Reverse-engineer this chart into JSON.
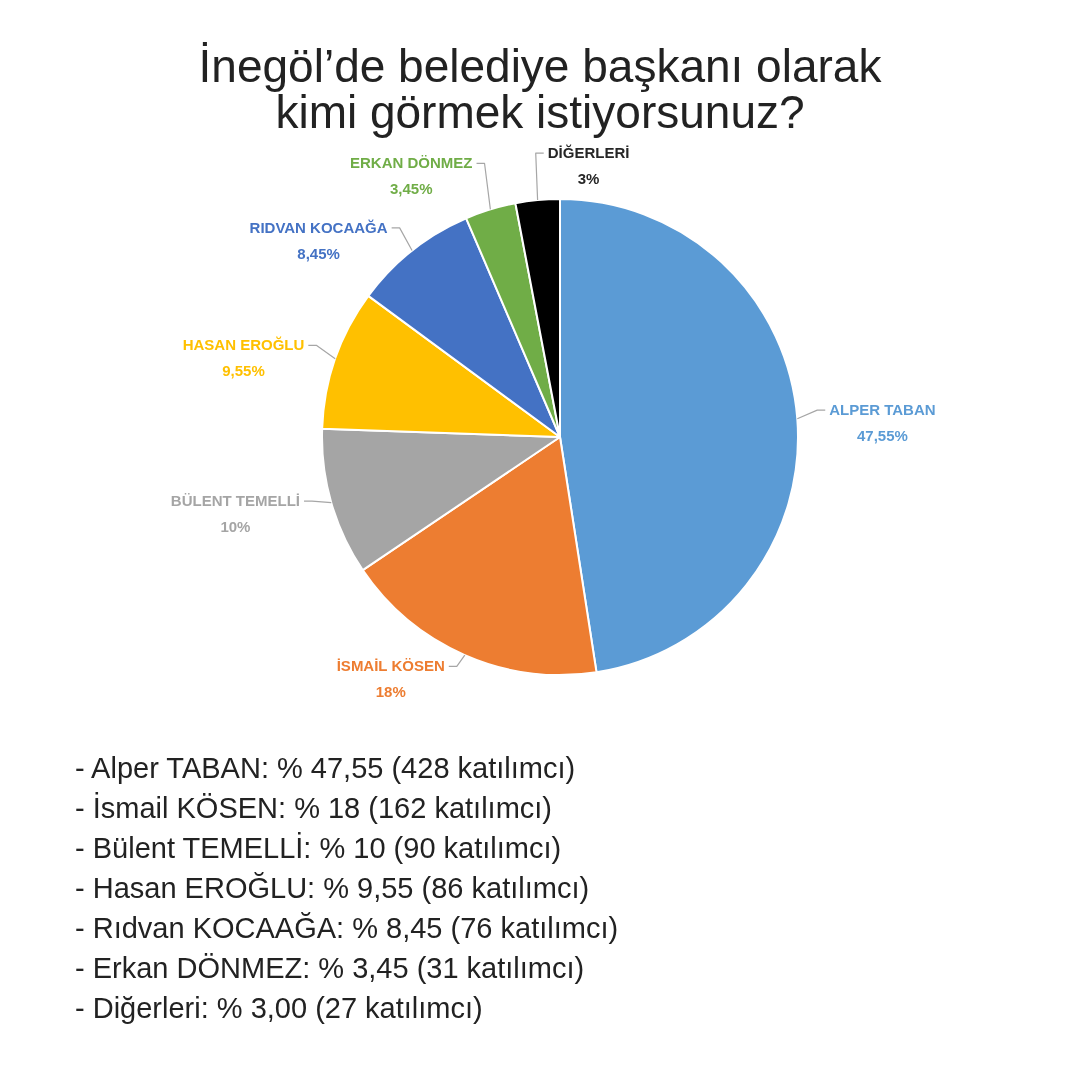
{
  "chart_data": {
    "type": "pie",
    "title": "İnegöl’de belediye başkanı olarak kimi görmek istiyorsunuz?",
    "categories": [
      "ALPER TABAN",
      "İSMAİL KÖSEN",
      "BÜLENT TEMELLİ",
      "HASAN EROĞLU",
      "RIDVAN KOCAAĞA",
      "ERKAN DÖNMEZ",
      "DİĞERLERİ"
    ],
    "values": [
      47.55,
      18,
      10,
      9.55,
      8.45,
      3.45,
      3
    ],
    "colors": [
      "#5b9bd5",
      "#ed7d31",
      "#a5a5a5",
      "#ffc000",
      "#4472c4",
      "#70ad47",
      "#000000"
    ],
    "value_labels": [
      "47,55%",
      "18%",
      "10%",
      "9,55%",
      "8,45%",
      "3,45%",
      "3%"
    ],
    "annotations": [
      "- Alper TABAN: % 47,55 (428 katılımcı)",
      "- İsmail KÖSEN: % 18 (162 katılımcı)",
      "- Bülent TEMELLİ: % 10 (90 katılımcı)",
      "- Hasan EROĞLU: % 9,55 (86 katılımcı)",
      "- Rıdvan KOCAAĞA: % 8,45 (76 katılımcı)",
      "- Erkan DÖNMEZ: % 3,45 (31 katılımcı)",
      "- Diğerleri: % 3,00 (27 katılımcı)"
    ]
  }
}
